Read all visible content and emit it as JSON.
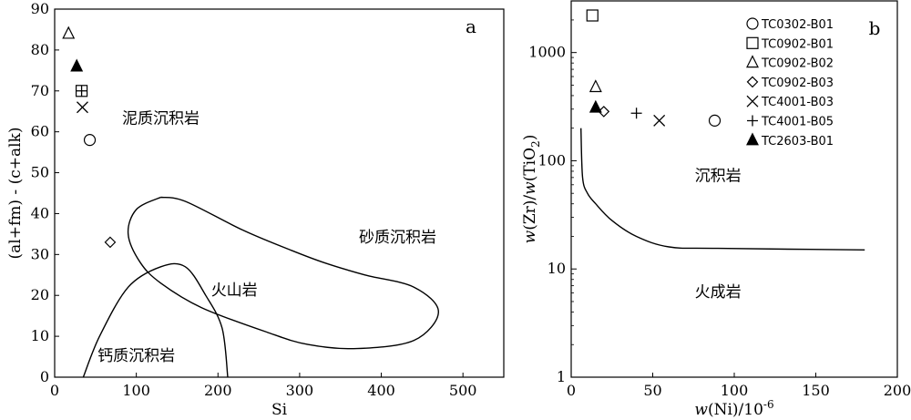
{
  "chart_data": [
    {
      "panel": "a",
      "type": "scatter",
      "xlabel": "Si",
      "ylabel": "(al+fm) - (c+alk)",
      "xlim": [
        0,
        550
      ],
      "ylim": [
        0,
        90
      ],
      "xticks": [
        0,
        100,
        200,
        300,
        400,
        500
      ],
      "yticks": [
        0,
        10,
        20,
        30,
        40,
        50,
        60,
        70,
        80,
        90
      ],
      "regions": [
        {
          "label": "泥质沉积岩",
          "x": 130,
          "y": 62
        },
        {
          "label": "砂质沉积岩",
          "x": 420,
          "y": 33
        },
        {
          "label": "火山岩",
          "x": 220,
          "y": 20
        },
        {
          "label": "钙质沉积岩",
          "x": 100,
          "y": 4
        }
      ],
      "curves": {
        "volcanic": [
          [
            130,
            44
          ],
          [
            100,
            41
          ],
          [
            90,
            35
          ],
          [
            105,
            28
          ],
          [
            130,
            23
          ],
          [
            180,
            17
          ],
          [
            260,
            11
          ],
          [
            310,
            8
          ],
          [
            370,
            7
          ],
          [
            440,
            9
          ],
          [
            470,
            16
          ],
          [
            440,
            22
          ],
          [
            380,
            25
          ],
          [
            330,
            28
          ],
          [
            290,
            31
          ],
          [
            230,
            36
          ],
          [
            160,
            43
          ],
          [
            130,
            44
          ]
        ],
        "calcareous": [
          [
            35,
            0
          ],
          [
            55,
            10
          ],
          [
            90,
            22
          ],
          [
            130,
            27
          ],
          [
            160,
            27
          ],
          [
            185,
            20
          ],
          [
            205,
            12
          ],
          [
            212,
            0
          ]
        ]
      },
      "points": [
        {
          "sample": "TC0902-B02",
          "marker": "triangle-open",
          "x": 17,
          "y": 84
        },
        {
          "sample": "TC2603-B01",
          "marker": "triangle-filled",
          "x": 27,
          "y": 76
        },
        {
          "sample": "TC0902-B01",
          "marker": "square-open",
          "x": 33,
          "y": 70
        },
        {
          "sample": "TC4001-B05",
          "marker": "plus",
          "x": 33,
          "y": 70
        },
        {
          "sample": "TC4001-B03",
          "marker": "cross",
          "x": 34,
          "y": 66
        },
        {
          "sample": "TC0302-B01",
          "marker": "circle-open",
          "x": 43,
          "y": 58
        },
        {
          "sample": "TC0902-B03",
          "marker": "diamond-open",
          "x": 68,
          "y": 33
        }
      ],
      "panel_label": "a"
    },
    {
      "panel": "b",
      "type": "scatter",
      "xlabel": "w(Ni)/10-6",
      "xlabel_parts": [
        "w",
        "(Ni)/10",
        "-6"
      ],
      "ylabel": "w(Zr)/w(TiO2)",
      "ylabel_parts": [
        "w",
        "(Zr)/",
        "w",
        "(TiO",
        "2",
        ")"
      ],
      "yscale": "log",
      "xlim": [
        0,
        200
      ],
      "ylim": [
        1,
        3000
      ],
      "xticks": [
        0,
        50,
        100,
        150,
        200
      ],
      "yticks": [
        1,
        10,
        100,
        1000
      ],
      "yticklabels": [
        "1",
        "10",
        "100",
        "1000"
      ],
      "regions": [
        {
          "label": "沉积岩",
          "x": 90,
          "y": 65
        },
        {
          "label": "火成岩",
          "x": 90,
          "y": 5.5
        }
      ],
      "curves": {
        "boundary": [
          [
            6,
            200
          ],
          [
            7,
            70
          ],
          [
            10,
            50
          ],
          [
            15,
            40
          ],
          [
            25,
            28
          ],
          [
            40,
            20
          ],
          [
            60,
            16
          ],
          [
            90,
            15.5
          ],
          [
            180,
            15
          ]
        ]
      },
      "points": [
        {
          "sample": "TC0902-B01",
          "marker": "square-open",
          "x": 13,
          "y": 2200
        },
        {
          "sample": "TC0902-B02",
          "marker": "triangle-open",
          "x": 15,
          "y": 480
        },
        {
          "sample": "TC2603-B01",
          "marker": "triangle-filled",
          "x": 15,
          "y": 310
        },
        {
          "sample": "TC0902-B03",
          "marker": "diamond-open",
          "x": 20,
          "y": 285
        },
        {
          "sample": "TC4001-B05",
          "marker": "plus",
          "x": 40,
          "y": 275
        },
        {
          "sample": "TC4001-B03",
          "marker": "cross",
          "x": 54,
          "y": 235
        },
        {
          "sample": "TC0302-B01",
          "marker": "circle-open",
          "x": 88,
          "y": 235
        }
      ],
      "legend": [
        {
          "name": "TC0302-B01",
          "marker": "circle-open"
        },
        {
          "name": "TC0902-B01",
          "marker": "square-open"
        },
        {
          "name": "TC0902-B02",
          "marker": "triangle-open"
        },
        {
          "name": "TC0902-B03",
          "marker": "diamond-open"
        },
        {
          "name": "TC4001-B03",
          "marker": "cross"
        },
        {
          "name": "TC4001-B05",
          "marker": "plus"
        },
        {
          "name": "TC2603-B01",
          "marker": "triangle-filled"
        }
      ],
      "legend_position": "top-right",
      "panel_label": "b"
    }
  ]
}
